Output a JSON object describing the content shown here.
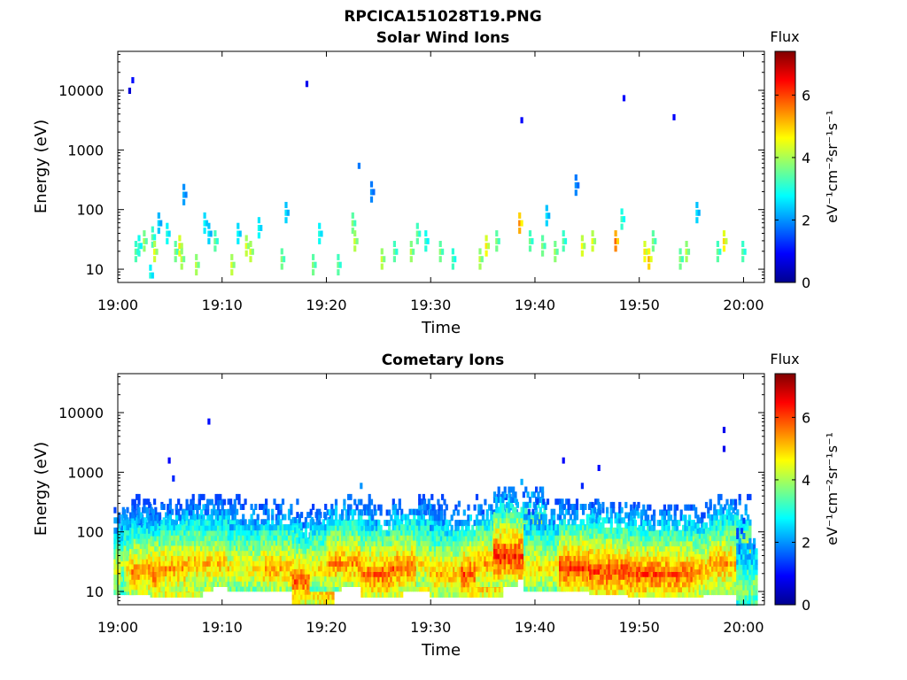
{
  "figure": {
    "title": "RPCICA151028T19.PNG"
  },
  "chart_data": [
    {
      "type": "heatmap",
      "title": "Solar Wind Ions",
      "xlabel": "Time",
      "ylabel": "Energy (eV)",
      "y_scale": "log",
      "x_ticks": [
        "19:00",
        "19:10",
        "19:20",
        "19:30",
        "19:40",
        "19:50",
        "20:00"
      ],
      "y_ticks": [
        "10",
        "100",
        "1000",
        "10000"
      ],
      "colorbar": {
        "title": "Flux",
        "label": "eV⁻¹cm⁻²sr⁻¹s⁻¹",
        "ticks": [
          "0",
          "2",
          "4",
          "6"
        ],
        "range": [
          0,
          7.4
        ]
      },
      "cells": [
        [
          1.0,
          10000,
          0.6
        ],
        [
          1.3,
          15000,
          1.0
        ],
        [
          1.6,
          20,
          3.5
        ],
        [
          1.9,
          25,
          3.2
        ],
        [
          2.4,
          30,
          4.0
        ],
        [
          3.0,
          8,
          3.0
        ],
        [
          3.2,
          35,
          3.5
        ],
        [
          3.4,
          20,
          4.5
        ],
        [
          3.8,
          60,
          2.5
        ],
        [
          4.6,
          40,
          3.0
        ],
        [
          5.4,
          20,
          3.8
        ],
        [
          5.8,
          25,
          4.8
        ],
        [
          6.0,
          15,
          4.2
        ],
        [
          6.2,
          180,
          2.2
        ],
        [
          7.4,
          12,
          4.2
        ],
        [
          8.2,
          60,
          2.8
        ],
        [
          8.6,
          40,
          2.6
        ],
        [
          9.2,
          30,
          3.6
        ],
        [
          10.8,
          12,
          4.4
        ],
        [
          11.4,
          40,
          2.8
        ],
        [
          12.2,
          25,
          4.4
        ],
        [
          12.6,
          20,
          4.4
        ],
        [
          13.4,
          50,
          2.9
        ],
        [
          15.6,
          15,
          3.8
        ],
        [
          16.0,
          90,
          2.6
        ],
        [
          18.0,
          13000,
          0.8
        ],
        [
          18.6,
          12,
          3.8
        ],
        [
          19.2,
          40,
          3.0
        ],
        [
          21.0,
          12,
          3.6
        ],
        [
          22.4,
          60,
          3.8
        ],
        [
          22.6,
          30,
          4.3
        ],
        [
          23.0,
          550,
          1.8
        ],
        [
          24.2,
          200,
          2.0
        ],
        [
          25.2,
          15,
          4.3
        ],
        [
          26.4,
          20,
          3.6
        ],
        [
          28.0,
          20,
          4.1
        ],
        [
          28.6,
          40,
          3.6
        ],
        [
          29.4,
          30,
          3.2
        ],
        [
          30.8,
          20,
          3.8
        ],
        [
          32.0,
          15,
          3.4
        ],
        [
          34.6,
          15,
          4.2
        ],
        [
          35.2,
          25,
          4.8
        ],
        [
          36.2,
          30,
          3.8
        ],
        [
          38.4,
          60,
          5.5
        ],
        [
          38.6,
          3200,
          0.9
        ],
        [
          39.4,
          30,
          3.6
        ],
        [
          40.6,
          25,
          3.8
        ],
        [
          41.0,
          80,
          2.6
        ],
        [
          41.8,
          20,
          4.0
        ],
        [
          42.6,
          30,
          3.5
        ],
        [
          43.8,
          260,
          2.0
        ],
        [
          44.4,
          25,
          4.6
        ],
        [
          45.4,
          30,
          4.5
        ],
        [
          47.6,
          30,
          5.8
        ],
        [
          48.2,
          70,
          3.3
        ],
        [
          48.4,
          7500,
          0.9
        ],
        [
          50.4,
          20,
          4.8
        ],
        [
          50.8,
          15,
          5.2
        ],
        [
          51.2,
          30,
          3.8
        ],
        [
          53.2,
          3600,
          0.9
        ],
        [
          53.8,
          15,
          3.8
        ],
        [
          54.4,
          20,
          4.2
        ],
        [
          55.4,
          90,
          2.6
        ],
        [
          57.4,
          20,
          3.6
        ],
        [
          58.0,
          30,
          4.9
        ],
        [
          59.8,
          20,
          3.5
        ]
      ]
    },
    {
      "type": "heatmap",
      "title": "Cometary Ions",
      "xlabel": "Time",
      "ylabel": "Energy (eV)",
      "y_scale": "log",
      "x_ticks": [
        "19:00",
        "19:10",
        "19:20",
        "19:30",
        "19:40",
        "19:50",
        "20:00"
      ],
      "y_ticks": [
        "10",
        "100",
        "1000",
        "10000"
      ],
      "colorbar": {
        "title": "Flux",
        "label": "eV⁻¹cm⁻²sr⁻¹s⁻¹",
        "ticks": [
          "0",
          "2",
          "4",
          "6"
        ],
        "range": [
          0,
          7.4
        ]
      },
      "bursts": [
        [
          0.5,
          22,
          5.2,
          2
        ],
        [
          1.2,
          30,
          4.6,
          2
        ],
        [
          2.0,
          25,
          5.3,
          3
        ],
        [
          3.0,
          22,
          6.0,
          4
        ],
        [
          5.5,
          20,
          6.3,
          5
        ],
        [
          6.5,
          25,
          5.9,
          5
        ],
        [
          8.4,
          30,
          5.8,
          4
        ],
        [
          9.6,
          30,
          5.7,
          4
        ],
        [
          12.4,
          25,
          5.4,
          4
        ],
        [
          15.6,
          25,
          5.8,
          4
        ],
        [
          18.6,
          15,
          6.4,
          4
        ],
        [
          19.8,
          25,
          5.4,
          3
        ],
        [
          22.4,
          30,
          6.0,
          5
        ],
        [
          25.2,
          20,
          6.3,
          4
        ],
        [
          28.2,
          25,
          6.3,
          4
        ],
        [
          30.0,
          30,
          5.4,
          3
        ],
        [
          31.8,
          20,
          5.8,
          4
        ],
        [
          34.8,
          20,
          6.5,
          4
        ],
        [
          36.2,
          30,
          5.9,
          4
        ],
        [
          38.4,
          40,
          6.8,
          5
        ],
        [
          40.8,
          25,
          5.4,
          4
        ],
        [
          44.2,
          25,
          6.6,
          4
        ],
        [
          47.6,
          22,
          6.6,
          5
        ],
        [
          50.8,
          20,
          6.5,
          4
        ],
        [
          54.0,
          20,
          6.4,
          4
        ],
        [
          57.2,
          22,
          5.9,
          4
        ],
        [
          58.6,
          30,
          6.0,
          4
        ],
        [
          60.2,
          12,
          4.4,
          2
        ]
      ],
      "isolated": [
        [
          8.6,
          7200,
          1.0
        ],
        [
          4.8,
          1600,
          0.9
        ],
        [
          42.6,
          1600,
          0.9
        ],
        [
          46.0,
          1200,
          1.0
        ],
        [
          44.4,
          600,
          1.2
        ],
        [
          58.0,
          2500,
          0.8
        ],
        [
          58.0,
          5200,
          0.8
        ],
        [
          38.6,
          700,
          2.2
        ],
        [
          23.2,
          600,
          2.0
        ],
        [
          5.2,
          800,
          1.2
        ],
        [
          32.6,
          300,
          1.8
        ]
      ]
    }
  ]
}
